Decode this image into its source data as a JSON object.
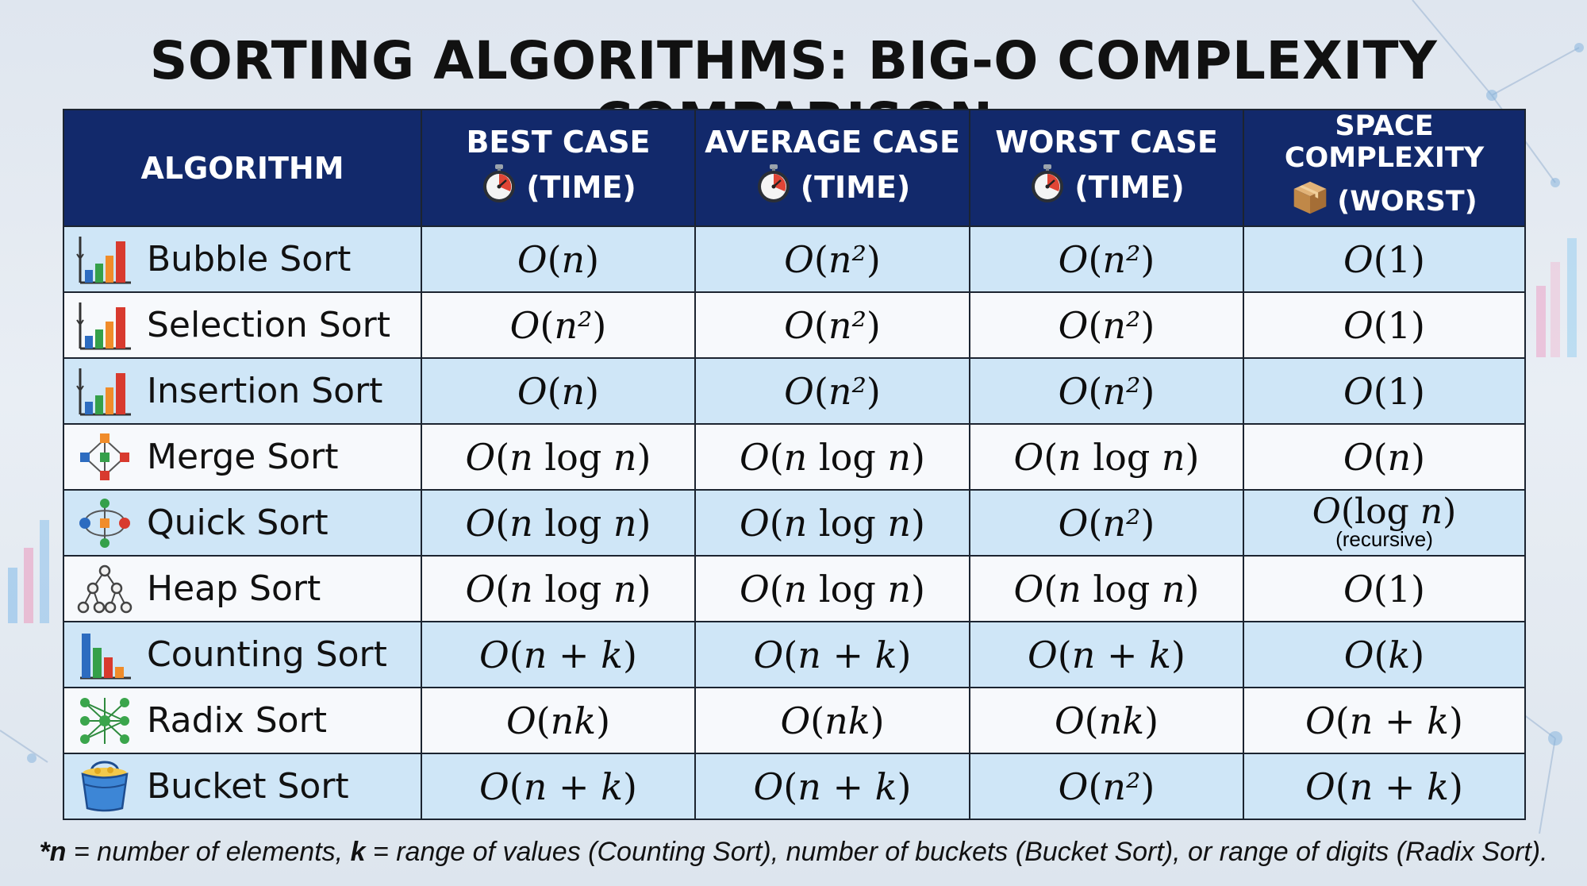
{
  "title": "SORTING ALGORITHMS: BIG-O COMPLEXITY COMPARISON",
  "chart_data": {
    "type": "table",
    "columns": [
      {
        "key": "algorithm",
        "line1": "ALGORITHM",
        "line2": "",
        "icon": ""
      },
      {
        "key": "best",
        "line1": "BEST CASE",
        "line2": "(TIME)",
        "icon": "stopwatch-icon"
      },
      {
        "key": "average",
        "line1": "AVERAGE CASE",
        "line2": "(TIME)",
        "icon": "stopwatch-icon"
      },
      {
        "key": "worst",
        "line1": "WORST CASE",
        "line2": "(TIME)",
        "icon": "stopwatch-icon"
      },
      {
        "key": "space",
        "line1": "SPACE COMPLEXITY",
        "line2": "(WORST)",
        "icon": "box-icon"
      }
    ],
    "rows": [
      {
        "name": "Bubble Sort",
        "icon": "bar-chart-icon",
        "best": "O(n)",
        "average": "O(n²)",
        "worst": "O(n²)",
        "space": "O(1)",
        "space_note": ""
      },
      {
        "name": "Selection Sort",
        "icon": "bar-chart-icon",
        "best": "O(n²)",
        "average": "O(n²)",
        "worst": "O(n²)",
        "space": "O(1)",
        "space_note": ""
      },
      {
        "name": "Insertion Sort",
        "icon": "bar-chart-icon",
        "best": "O(n)",
        "average": "O(n²)",
        "worst": "O(n²)",
        "space": "O(1)",
        "space_note": ""
      },
      {
        "name": "Merge Sort",
        "icon": "merge-tree-icon",
        "best": "O(n log n)",
        "average": "O(n log n)",
        "worst": "O(n log n)",
        "space": "O(n)",
        "space_note": ""
      },
      {
        "name": "Quick Sort",
        "icon": "partition-icon",
        "best": "O(n log n)",
        "average": "O(n log n)",
        "worst": "O(n²)",
        "space": "O(log n)",
        "space_note": "(recursive)"
      },
      {
        "name": "Heap Sort",
        "icon": "heap-tree-icon",
        "best": "O(n log n)",
        "average": "O(n log n)",
        "worst": "O(n log n)",
        "space": "O(1)",
        "space_note": ""
      },
      {
        "name": "Counting Sort",
        "icon": "counting-bars-icon",
        "best": "O(n + k)",
        "average": "O(n + k)",
        "worst": "O(n + k)",
        "space": "O(k)",
        "space_note": ""
      },
      {
        "name": "Radix Sort",
        "icon": "radix-network-icon",
        "best": "O(nk)",
        "average": "O(nk)",
        "worst": "O(nk)",
        "space": "O(n + k)",
        "space_note": ""
      },
      {
        "name": "Bucket Sort",
        "icon": "bucket-icon",
        "best": "O(n + k)",
        "average": "O(n + k)",
        "worst": "O(n²)",
        "space": "O(n + k)",
        "space_note": ""
      }
    ]
  },
  "footnote": {
    "parts": [
      {
        "text": "*n",
        "bold": true
      },
      {
        "text": " = number of elements, ",
        "bold": false
      },
      {
        "text": "k",
        "bold": true
      },
      {
        "text": " = range of values (Counting Sort), number of buckets (Bucket Sort), or range of digits (Radix Sort).",
        "bold": false
      }
    ]
  },
  "colors": {
    "header_bg": "#12296b",
    "row_blue": "#cfe6f7",
    "row_white": "#f7f9fc",
    "border": "#1c2430",
    "bar_blue": "#2d6cc0",
    "bar_green": "#35a04a",
    "bar_orange": "#f08c2a",
    "bar_red": "#d83a2e"
  }
}
